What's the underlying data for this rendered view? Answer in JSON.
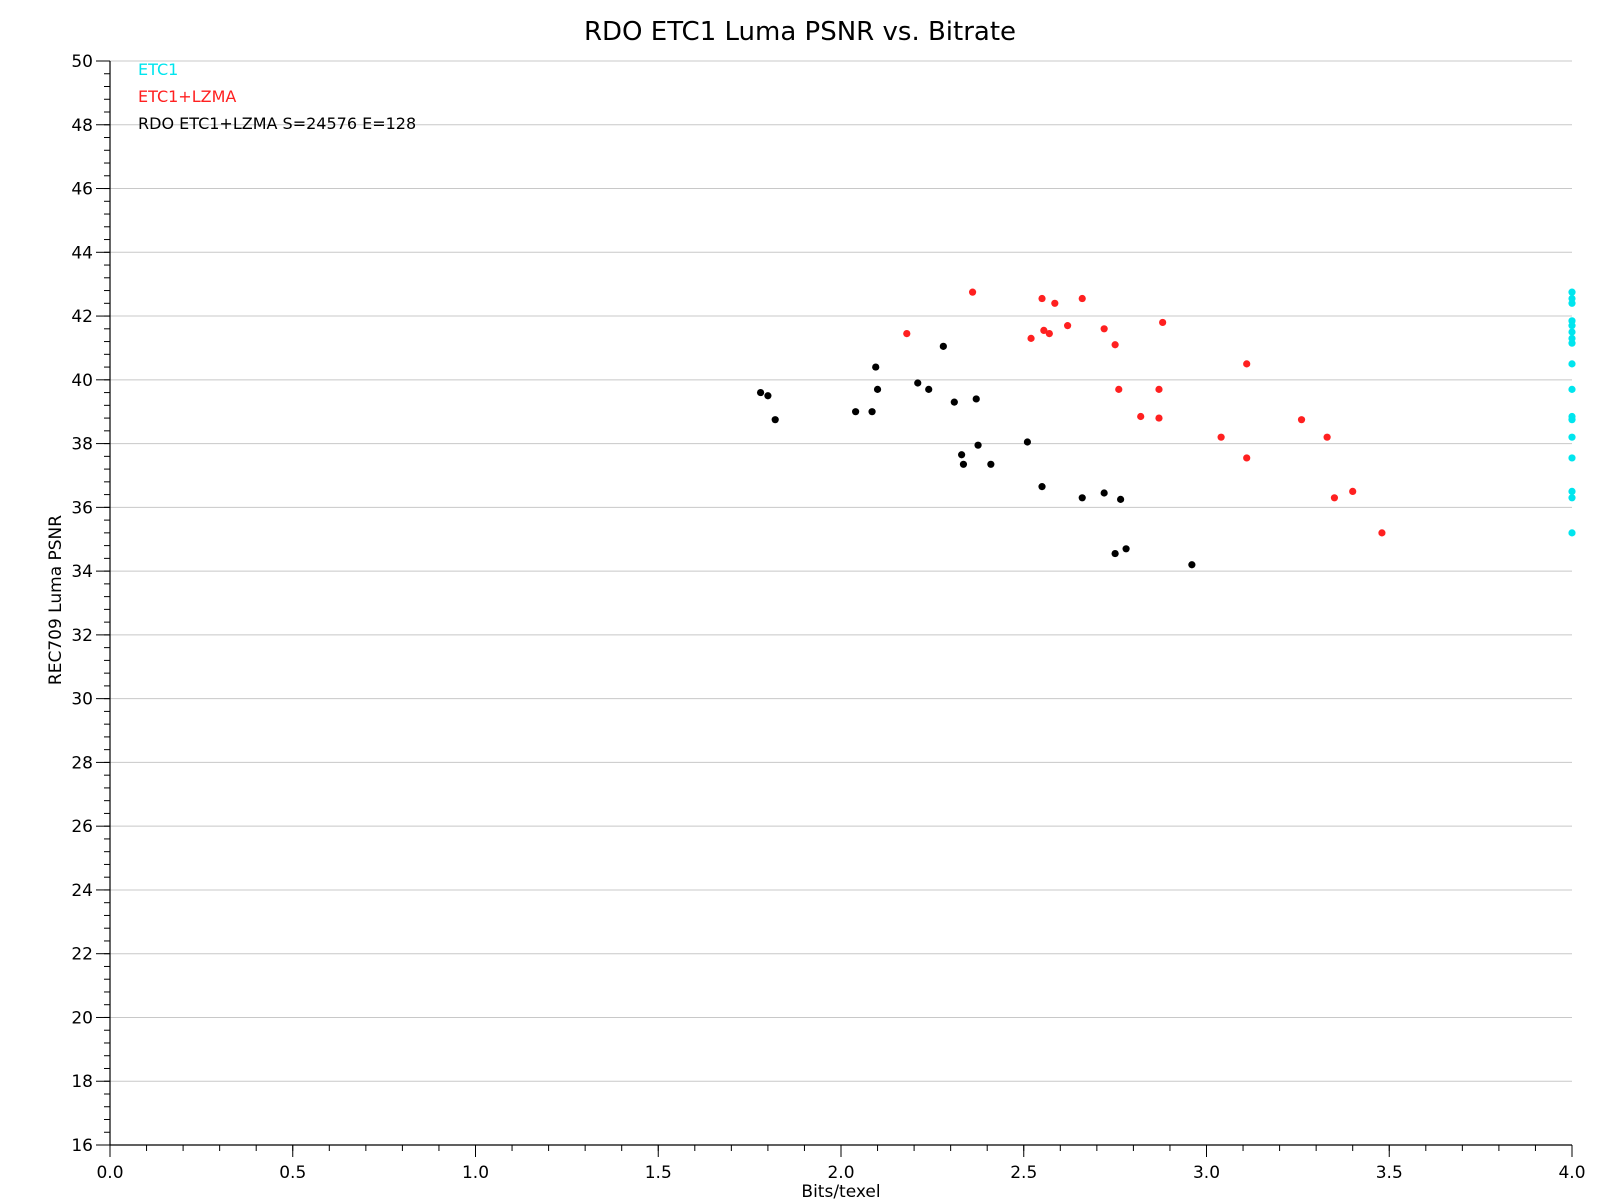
{
  "chart_data": {
    "type": "scatter",
    "title": "RDO ETC1 Luma PSNR vs. Bitrate",
    "xlabel": "Bits/texel",
    "ylabel": "REC709 Luma PSNR",
    "xlim": [
      0.0,
      4.0
    ],
    "ylim": [
      16,
      50
    ],
    "x_ticks": [
      "0.0",
      "0.5",
      "1.0",
      "1.5",
      "2.0",
      "2.5",
      "3.0",
      "3.5",
      "4.0"
    ],
    "y_ticks": [
      "16",
      "18",
      "20",
      "22",
      "24",
      "26",
      "28",
      "30",
      "32",
      "34",
      "36",
      "38",
      "40",
      "42",
      "44",
      "46",
      "48",
      "50"
    ],
    "grid": "horizontal",
    "legend_position": "top-left",
    "series": [
      {
        "name": "ETC1",
        "color": "#00e5ee",
        "points": [
          [
            4.0,
            42.75
          ],
          [
            4.0,
            42.55
          ],
          [
            4.0,
            42.4
          ],
          [
            4.0,
            41.85
          ],
          [
            4.0,
            41.7
          ],
          [
            4.0,
            41.5
          ],
          [
            4.0,
            41.3
          ],
          [
            4.0,
            41.15
          ],
          [
            4.0,
            40.5
          ],
          [
            4.0,
            39.7
          ],
          [
            4.0,
            38.85
          ],
          [
            4.0,
            38.75
          ],
          [
            4.0,
            38.2
          ],
          [
            4.0,
            37.55
          ],
          [
            4.0,
            36.5
          ],
          [
            4.0,
            36.3
          ],
          [
            4.0,
            35.2
          ]
        ]
      },
      {
        "name": "ETC1+LZMA",
        "color": "#ff2020",
        "points": [
          [
            2.18,
            41.45
          ],
          [
            2.36,
            42.75
          ],
          [
            2.52,
            41.3
          ],
          [
            2.55,
            42.55
          ],
          [
            2.555,
            41.55
          ],
          [
            2.57,
            41.45
          ],
          [
            2.585,
            42.4
          ],
          [
            2.62,
            41.7
          ],
          [
            2.66,
            42.55
          ],
          [
            2.72,
            41.6
          ],
          [
            2.75,
            41.1
          ],
          [
            2.76,
            39.7
          ],
          [
            2.82,
            38.85
          ],
          [
            2.87,
            38.8
          ],
          [
            2.87,
            39.7
          ],
          [
            2.88,
            41.8
          ],
          [
            3.04,
            38.2
          ],
          [
            3.11,
            40.5
          ],
          [
            3.11,
            37.55
          ],
          [
            3.26,
            38.75
          ],
          [
            3.33,
            38.2
          ],
          [
            3.35,
            36.3
          ],
          [
            3.4,
            36.5
          ],
          [
            3.48,
            35.2
          ]
        ]
      },
      {
        "name": "RDO ETC1+LZMA S=24576 E=128",
        "color": "#000000",
        "points": [
          [
            1.78,
            39.6
          ],
          [
            1.8,
            39.5
          ],
          [
            1.82,
            38.75
          ],
          [
            2.04,
            39.0
          ],
          [
            2.085,
            39.0
          ],
          [
            2.095,
            40.4
          ],
          [
            2.1,
            39.7
          ],
          [
            2.21,
            39.9
          ],
          [
            2.24,
            39.7
          ],
          [
            2.28,
            41.05
          ],
          [
            2.31,
            39.3
          ],
          [
            2.33,
            37.65
          ],
          [
            2.335,
            37.35
          ],
          [
            2.37,
            39.4
          ],
          [
            2.375,
            37.95
          ],
          [
            2.41,
            37.35
          ],
          [
            2.51,
            38.05
          ],
          [
            2.55,
            36.65
          ],
          [
            2.66,
            36.3
          ],
          [
            2.72,
            36.45
          ],
          [
            2.75,
            34.55
          ],
          [
            2.765,
            36.25
          ],
          [
            2.78,
            34.7
          ],
          [
            2.96,
            34.2
          ]
        ]
      }
    ]
  }
}
